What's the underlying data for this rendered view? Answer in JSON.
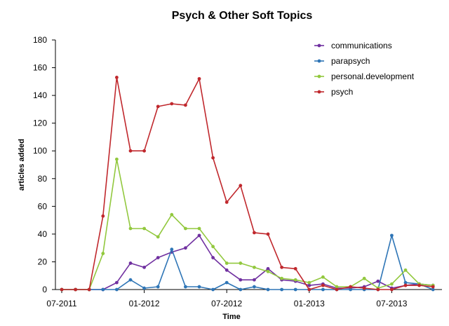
{
  "chart_data": {
    "type": "line",
    "title": "Psych & Other Soft Topics",
    "xlabel": "Time",
    "ylabel": "articles added",
    "ylim": [
      0,
      180
    ],
    "yticks": [
      0,
      20,
      40,
      60,
      80,
      100,
      120,
      140,
      160,
      180
    ],
    "xticks": [
      "07-2011",
      "01-2012",
      "07-2012",
      "01-2013",
      "07-2013"
    ],
    "x": [
      "2011-07",
      "2011-08",
      "2011-09",
      "2011-10",
      "2011-11",
      "2011-12",
      "2012-01",
      "2012-02",
      "2012-03",
      "2012-04",
      "2012-05",
      "2012-06",
      "2012-07",
      "2012-08",
      "2012-09",
      "2012-10",
      "2012-11",
      "2012-12",
      "2013-01",
      "2013-02",
      "2013-03",
      "2013-04",
      "2013-05",
      "2013-06",
      "2013-07",
      "2013-08",
      "2013-09",
      "2013-10"
    ],
    "legend_position": "top-right",
    "grid": false,
    "series": [
      {
        "name": "communications",
        "color": "#7030a0",
        "values": [
          0,
          0,
          0,
          0,
          5,
          19,
          16,
          23,
          27,
          30,
          39,
          23,
          14,
          7,
          7,
          15,
          7,
          6,
          3,
          4,
          1,
          1,
          2,
          6,
          1,
          3,
          4,
          3
        ]
      },
      {
        "name": "parapsych",
        "color": "#2e75b6",
        "values": [
          0,
          0,
          0,
          0,
          0,
          7,
          1,
          2,
          29,
          2,
          2,
          0,
          5,
          0,
          2,
          0,
          0,
          0,
          0,
          0,
          0,
          0,
          0,
          0,
          39,
          5,
          4,
          0
        ]
      },
      {
        "name": "personal.development",
        "color": "#92c83e",
        "values": [
          0,
          0,
          0,
          26,
          94,
          44,
          44,
          38,
          54,
          44,
          44,
          31,
          19,
          19,
          16,
          13,
          8,
          7,
          5,
          9,
          2,
          2,
          8,
          1,
          4,
          14,
          4,
          3
        ]
      },
      {
        "name": "psych",
        "color": "#c0282d",
        "values": [
          0,
          0,
          0,
          53,
          153,
          100,
          100,
          132,
          134,
          133,
          152,
          95,
          63,
          75,
          41,
          40,
          16,
          15,
          0,
          3,
          0,
          2,
          1,
          0,
          0,
          3,
          3,
          2
        ]
      }
    ]
  }
}
